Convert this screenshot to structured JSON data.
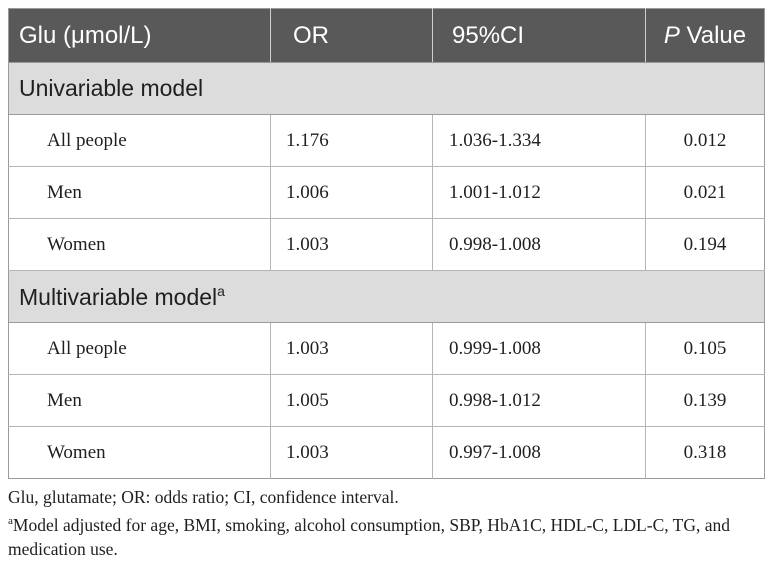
{
  "table": {
    "headers": {
      "col1": "Glu (μmol/L)",
      "col2": "OR",
      "col3": "95%CI",
      "col4_italic": "P",
      "col4_rest": " Value"
    },
    "sections": [
      {
        "title": "Univariable model",
        "superscript": "",
        "rows": [
          {
            "label": "All people",
            "or": "1.176",
            "ci": "1.036-1.334",
            "p": "0.012"
          },
          {
            "label": "Men",
            "or": "1.006",
            "ci": "1.001-1.012",
            "p": "0.021"
          },
          {
            "label": "Women",
            "or": "1.003",
            "ci": "0.998-1.008",
            "p": "0.194"
          }
        ]
      },
      {
        "title": "Multivariable model",
        "superscript": "a",
        "rows": [
          {
            "label": "All people",
            "or": "1.003",
            "ci": "0.999-1.008",
            "p": "0.105"
          },
          {
            "label": "Men",
            "or": "1.005",
            "ci": "0.998-1.012",
            "p": "0.139"
          },
          {
            "label": "Women",
            "or": "1.003",
            "ci": "0.997-1.008",
            "p": "0.318"
          }
        ]
      }
    ]
  },
  "footnotes": {
    "abbreviations": "Glu, glutamate; OR: odds ratio; CI, confidence interval.",
    "note_marker": "a",
    "note_text": "Model adjusted for age, BMI, smoking, alcohol consumption, SBP, HbA1C, HDL-C, LDL-C, TG, and medication use."
  },
  "colors": {
    "header_bg": "#595959",
    "header_text": "#ffffff",
    "section_bg": "#dcdcdc",
    "border": "#b5b5b5"
  }
}
